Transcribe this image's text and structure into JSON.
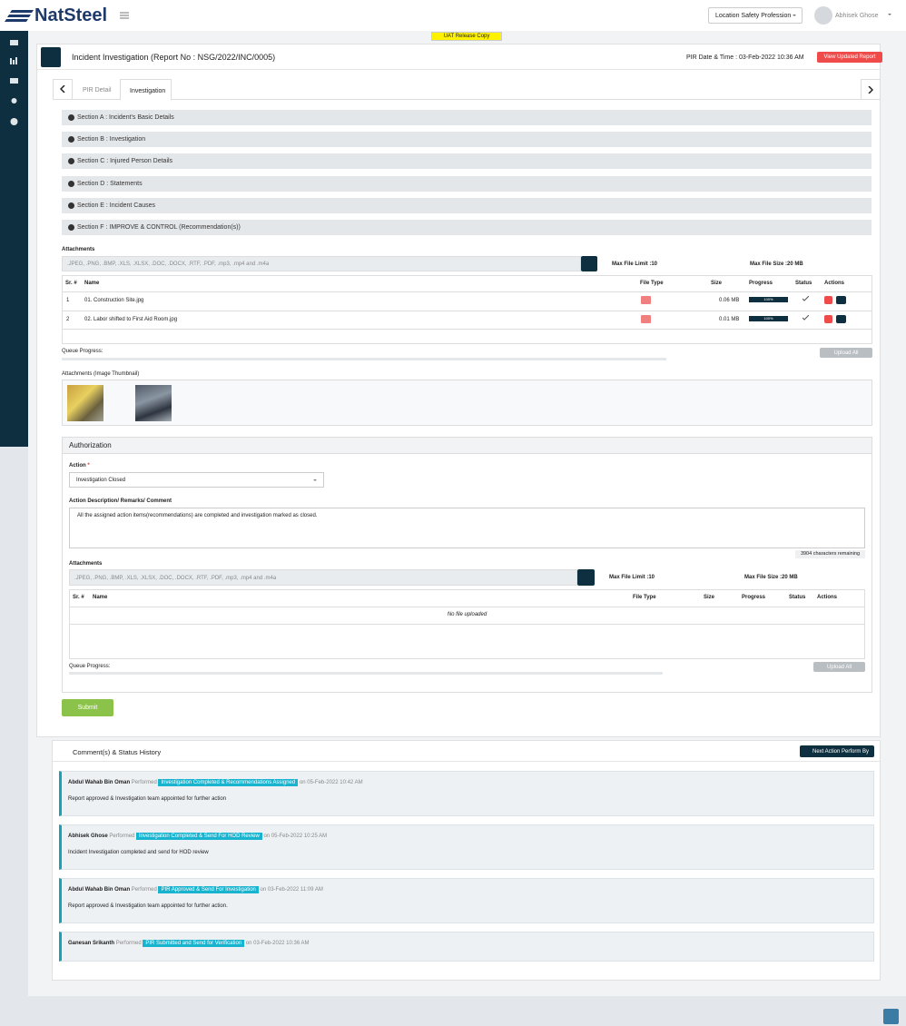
{
  "header": {
    "brand": "NatSteel",
    "role": "Location Safety Profession",
    "user": "Abhisek Ghose"
  },
  "banner": "UAT Release Copy",
  "page": {
    "title": "Incident Investigation (Report No : NSG/2022/INC/0005)",
    "pir_datetime": "PIR Date & Time : 03-Feb-2022 10:36 AM",
    "view_button": "View Updated Report"
  },
  "tabs": [
    "PIR Detail",
    "Investigation"
  ],
  "sections": [
    "Section A : Incident's Basic Details",
    "Section B : Investigation",
    "Section C : Injured Person Details",
    "Section D : Statements",
    "Section E : Incident Causes",
    "Section F : IMPROVE & CONTROL (Recommendation(s))"
  ],
  "attachments": {
    "label": "Attachments",
    "placeholder": ".JPEG, .PNG, .BMP, .XLS, .XLSX, .DOC, .DOCX, .RTF, .PDF, .mp3, .mp4 and .m4a",
    "max_limit": "Max File Limit :10",
    "max_size": "Max File Size :20 MB",
    "columns": [
      "Sr. #",
      "Name",
      "File Type",
      "Size",
      "Progress",
      "Status",
      "Actions"
    ],
    "rows": [
      [
        "1",
        "01. Construction Site.jpg",
        "0.06 MB",
        "100%"
      ],
      [
        "2",
        "02. Labor shifted to First Aid Room.jpg",
        "0.01 MB",
        "100%"
      ]
    ],
    "queue": "Queue Progress:",
    "upload": "Upload All",
    "thumbnail_label": "Attachments (Image Thumbnail)"
  },
  "authorization": {
    "title": "Authorization",
    "action_label": "Action",
    "required": "*",
    "action_value": "Investigation Closed",
    "desc_label": "Action Description/ Remarks/ Comment",
    "desc_text": "All the assigned action items(recommendations) are completed and investigation marked as closed.",
    "chars": "3904 characters remaining",
    "attachments_label": "Attachments",
    "placeholder": ".JPEG, .PNG, .BMP, .XLS, .XLSX, .DOC, .DOCX, .RTF, .PDF, .mp3, .mp4 and .m4a",
    "max_limit": "Max File Limit :10",
    "max_size": "Max File Size :20 MB",
    "columns": [
      "Sr. #",
      "Name",
      "File Type",
      "Size",
      "Progress",
      "Status",
      "Actions"
    ],
    "empty": "No file uploaded",
    "queue": "Queue Progress:",
    "upload": "Upload All",
    "submit": "Submit"
  },
  "history": {
    "title": "Comment(s) & Status History",
    "next_button": "Next Action Perform By",
    "performed": "Performed",
    "entries": [
      {
        "name": "Abdul Wahab Bin Oman",
        "status": "Investigation Completed & Recommendations Assigned",
        "on": "on 05-Feb-2022 10:42 AM",
        "comment": "Report approved & Investigation team appointed for further action"
      },
      {
        "name": "Abhisek Ghose",
        "status": "Investigation Completed & Send For HOD Review",
        "on": "on 05-Feb-2022 10:25 AM",
        "comment": "Incident Investigation completed and send for HOD review"
      },
      {
        "name": "Abdul Wahab Bin Oman",
        "status": "PIR Approved & Send For Investigation",
        "on": "on 03-Feb-2022 11:09 AM",
        "comment": "Report approved & Investigation team appointed for further action."
      },
      {
        "name": "Ganesan Srikanth",
        "status": "PIR Submitted and Send for Verification",
        "on": "on 03-Feb-2022 10:36 AM"
      }
    ]
  }
}
